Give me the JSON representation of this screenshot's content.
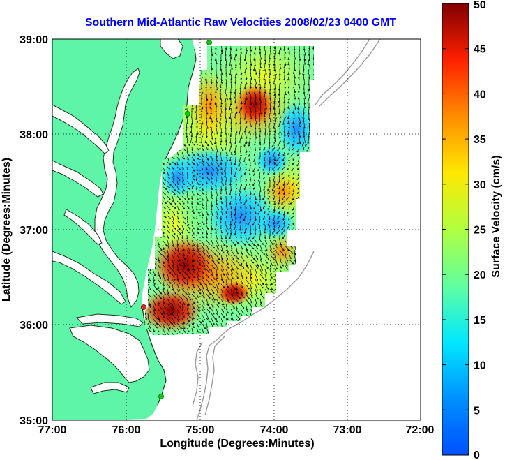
{
  "title": "Southern Mid-Atlantic Raw Velocities 2008/02/23 0400 GMT",
  "xlabel": "Longitude (Degrees:Minutes)",
  "ylabel": "Latitude (Degrees:Minutes)",
  "x_ticks": [
    "77:00",
    "76:00",
    "75:00",
    "74:00",
    "73:00",
    "72:00"
  ],
  "y_ticks": [
    "39:00",
    "38:00",
    "37:00",
    "36:00",
    "35:00"
  ],
  "colorbar": {
    "label": "Surface Velocity (cm/s)",
    "min": 0,
    "max": 50,
    "ticks": [
      "0",
      "5",
      "10",
      "15",
      "20",
      "25",
      "30",
      "35",
      "40",
      "45",
      "50"
    ]
  },
  "colors": {
    "land": "#5ef5a8",
    "title": "#0000ff",
    "bathymetry": "#9a9a9a",
    "grid": "#000000"
  }
}
